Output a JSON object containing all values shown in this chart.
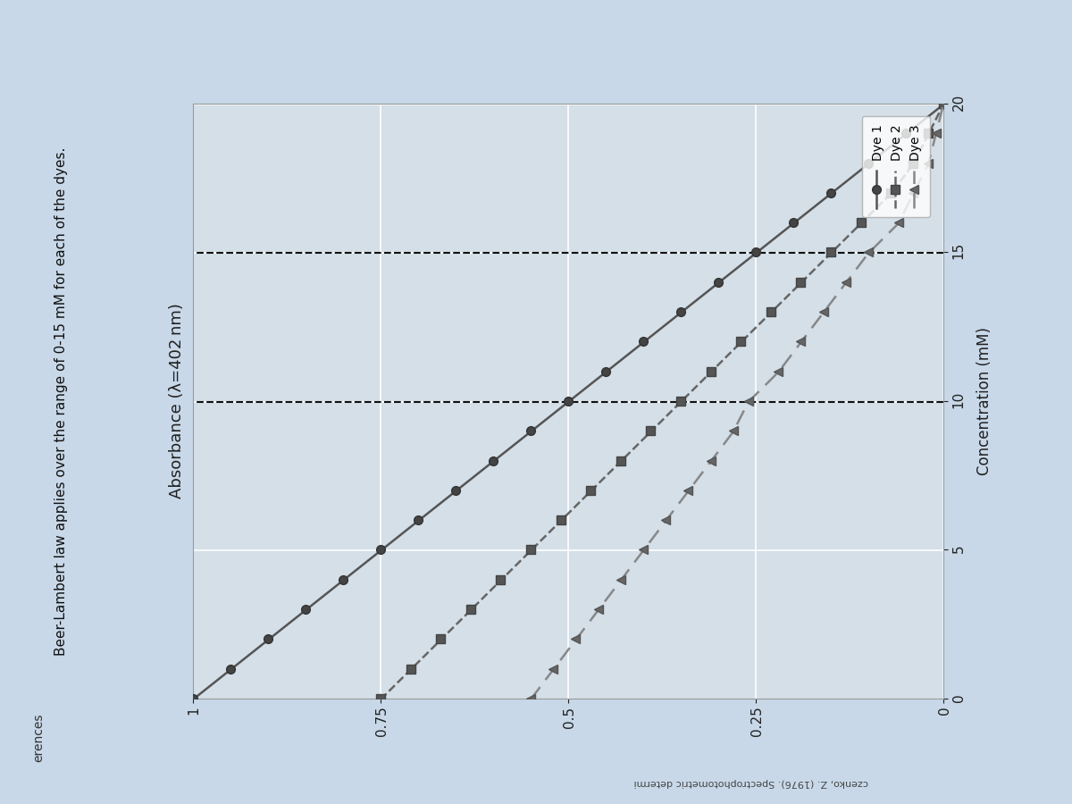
{
  "title": "Absorbance (λ=402 nm)",
  "xlabel": "Concentration (mM)",
  "xlim": [
    0,
    20
  ],
  "ylim": [
    0,
    1.0
  ],
  "yticks": [
    0,
    0.25,
    0.5,
    0.75,
    1.0
  ],
  "ytick_labels": [
    "0",
    "0.25",
    "0.5",
    "0.75",
    "1"
  ],
  "xticks": [
    0,
    5,
    10,
    15,
    20
  ],
  "hlines": [
    10,
    15
  ],
  "dye1": {
    "x": [
      0,
      1,
      2,
      3,
      4,
      5,
      6,
      7,
      8,
      9,
      10,
      11,
      12,
      13,
      14,
      15,
      16,
      17,
      18,
      19,
      20
    ],
    "y": [
      1.0,
      0.95,
      0.9,
      0.85,
      0.8,
      0.75,
      0.7,
      0.65,
      0.6,
      0.55,
      0.5,
      0.45,
      0.4,
      0.35,
      0.3,
      0.25,
      0.2,
      0.15,
      0.1,
      0.05,
      0.0
    ],
    "label": "Dye 1",
    "color": "#555555",
    "linestyle": "-",
    "marker": "o"
  },
  "dye2": {
    "x": [
      0,
      1,
      2,
      3,
      4,
      5,
      6,
      7,
      8,
      9,
      10,
      11,
      12,
      13,
      14,
      15,
      16,
      17,
      18,
      19,
      20
    ],
    "y": [
      0.75,
      0.71,
      0.67,
      0.63,
      0.59,
      0.55,
      0.51,
      0.47,
      0.43,
      0.39,
      0.35,
      0.31,
      0.27,
      0.23,
      0.19,
      0.15,
      0.11,
      0.07,
      0.04,
      0.02,
      0.0
    ],
    "label": "Dye 2",
    "color": "#666666",
    "linestyle": "--",
    "marker": "s"
  },
  "dye3": {
    "x": [
      0,
      1,
      2,
      3,
      4,
      5,
      6,
      7,
      8,
      9,
      10,
      11,
      12,
      13,
      14,
      15,
      16,
      17,
      18,
      19,
      20
    ],
    "y": [
      0.55,
      0.52,
      0.49,
      0.46,
      0.43,
      0.4,
      0.37,
      0.34,
      0.31,
      0.28,
      0.26,
      0.22,
      0.19,
      0.16,
      0.13,
      0.1,
      0.06,
      0.04,
      0.02,
      0.01,
      0.0
    ],
    "label": "Dye 3",
    "color": "#888888",
    "linestyle": "--",
    "marker": "^"
  },
  "background_color": "#c8d8e8",
  "plot_bg_color": "#d4dfe8",
  "grid_color": "#ffffff",
  "hline_color": "#111111",
  "header_text": "Beer-Lambert law applies over the range of 0-15 mM for each of the dyes.",
  "ref_text_top": "erences",
  "ref_text_bottom": "czenko, Z. (1976). Spectrophotometric determi",
  "markersize": 7,
  "linewidth": 1.8
}
